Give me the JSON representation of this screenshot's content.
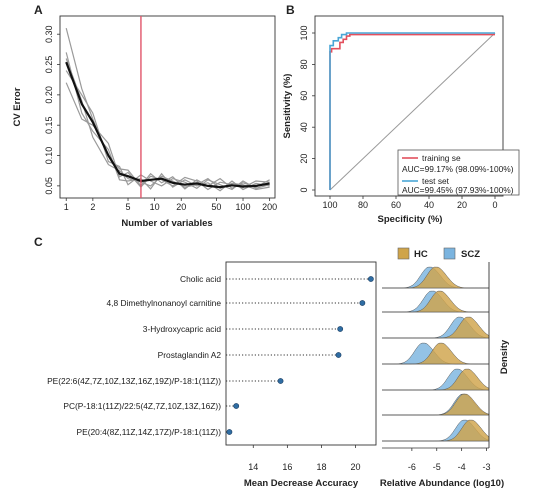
{
  "panels": {
    "a": "A",
    "b": "B",
    "c": "C"
  },
  "chart_data": [
    {
      "panel": "A",
      "type": "line",
      "xlabel": "Number of variables",
      "ylabel": "CV Error",
      "x_scale": "log",
      "x_ticks": [
        1,
        2,
        5,
        10,
        20,
        50,
        100,
        200
      ],
      "y_ticks": [
        0.05,
        0.1,
        0.15,
        0.2,
        0.25,
        0.3
      ],
      "xlim": [
        0.85,
        230
      ],
      "ylim": [
        0.03,
        0.33
      ],
      "vline_x": 7,
      "vline_color": "#e0556a",
      "x": [
        1,
        1.5,
        2,
        3,
        4,
        5,
        7,
        9,
        12,
        16,
        22,
        30,
        40,
        55,
        75,
        100,
        140,
        200
      ],
      "series": [
        {
          "color": "#111111",
          "values": [
            0.254,
            0.185,
            0.155,
            0.1,
            0.07,
            0.066,
            0.058,
            0.06,
            0.062,
            0.055,
            0.052,
            0.054,
            0.05,
            0.048,
            0.051,
            0.049,
            0.05,
            0.054
          ]
        },
        {
          "color": "#9a9a9a",
          "values": [
            0.31,
            0.21,
            0.16,
            0.098,
            0.078,
            0.076,
            0.05,
            0.07,
            0.055,
            0.065,
            0.045,
            0.06,
            0.05,
            0.062,
            0.046,
            0.055,
            0.048,
            0.06
          ]
        },
        {
          "color": "#9a9a9a",
          "values": [
            0.27,
            0.17,
            0.14,
            0.11,
            0.06,
            0.058,
            0.062,
            0.045,
            0.07,
            0.048,
            0.06,
            0.05,
            0.055,
            0.042,
            0.058,
            0.044,
            0.054,
            0.05
          ]
        },
        {
          "color": "#9a9a9a",
          "values": [
            0.24,
            0.2,
            0.17,
            0.09,
            0.082,
            0.052,
            0.068,
            0.058,
            0.05,
            0.062,
            0.056,
            0.046,
            0.06,
            0.052,
            0.044,
            0.058,
            0.046,
            0.052
          ]
        },
        {
          "color": "#9a9a9a",
          "values": [
            0.22,
            0.16,
            0.15,
            0.12,
            0.065,
            0.072,
            0.048,
            0.066,
            0.06,
            0.05,
            0.064,
            0.058,
            0.044,
            0.056,
            0.052,
            0.047,
            0.058,
            0.056
          ]
        },
        {
          "color": "#9a9a9a",
          "values": [
            0.26,
            0.19,
            0.13,
            0.085,
            0.075,
            0.062,
            0.056,
            0.05,
            0.066,
            0.058,
            0.048,
            0.052,
            0.062,
            0.046,
            0.054,
            0.052,
            0.044,
            0.048
          ]
        }
      ]
    },
    {
      "panel": "B",
      "type": "line",
      "xlabel": "Specificity (%)",
      "ylabel": "Sensitivity (%)",
      "x_ticks": [
        100,
        80,
        60,
        40,
        20,
        0
      ],
      "y_ticks": [
        0,
        20,
        40,
        60,
        80,
        100
      ],
      "x_reversed": true,
      "series": [
        {
          "name": "training se",
          "color": "#e3505e",
          "x": [
            100,
            100,
            99,
            99,
            94,
            94,
            92,
            92,
            90,
            90,
            88,
            88,
            0
          ],
          "y": [
            0,
            88,
            88,
            90,
            90,
            94,
            94,
            96,
            96,
            98,
            98,
            99,
            99
          ]
        },
        {
          "name": "test set",
          "color": "#4aa6d6",
          "x": [
            100,
            100,
            98,
            98,
            95,
            95,
            93,
            93,
            90,
            90,
            0
          ],
          "y": [
            0,
            92,
            92,
            95,
            95,
            97,
            97,
            99,
            99,
            100,
            100
          ]
        }
      ],
      "legend": [
        {
          "label": "training se",
          "color": "#e3505e"
        },
        {
          "label": "AUC=99.17% (98.09%-100%)",
          "color": ""
        },
        {
          "label": "test set",
          "color": "#4aa6d6"
        },
        {
          "label": "AUC=99.45% (97.93%-100%)",
          "color": ""
        }
      ],
      "legend_position": "bottom-right"
    },
    {
      "panel": "C",
      "type": "scatter",
      "xlabel": "Mean Decrease Accuracy",
      "x_ticks": [
        14,
        16,
        18,
        20
      ],
      "xlim": [
        12.4,
        21.2
      ],
      "point_color": "#2f6da3",
      "categories": [
        "Cholic acid",
        "4,8 Dimethylnonanoyl carnitine",
        "3-Hydroxycapric acid",
        "Prostaglandin A2",
        "PE(22:6(4Z,7Z,10Z,13Z,16Z,19Z)/P-18:1(11Z))",
        "PC(P-18:1(11Z)/22:5(4Z,7Z,10Z,13Z,16Z))",
        "PE(20:4(8Z,11Z,14Z,17Z)/P-18:1(11Z))"
      ],
      "values": [
        20.9,
        20.4,
        19.1,
        19.0,
        15.6,
        13.0,
        12.6
      ]
    },
    {
      "panel": "C",
      "type": "area",
      "xlabel": "Relative Abundance (log10)",
      "ylabel": "Density",
      "x_ticks": [
        -6,
        -5,
        -4,
        -3
      ],
      "xlim": [
        -7.2,
        -2.9
      ],
      "series": [
        {
          "name": "HC",
          "color": "#cfa44a",
          "peaks": [
            -5.1,
            -4.95,
            -3.8,
            -4.9,
            -3.85,
            -3.95,
            -3.7
          ]
        },
        {
          "name": "SCZ",
          "color": "#7bb4df",
          "peaks": [
            -5.35,
            -5.25,
            -4.15,
            -5.6,
            -4.25,
            -4.0,
            -3.95
          ]
        }
      ],
      "legend_position": "top"
    }
  ]
}
